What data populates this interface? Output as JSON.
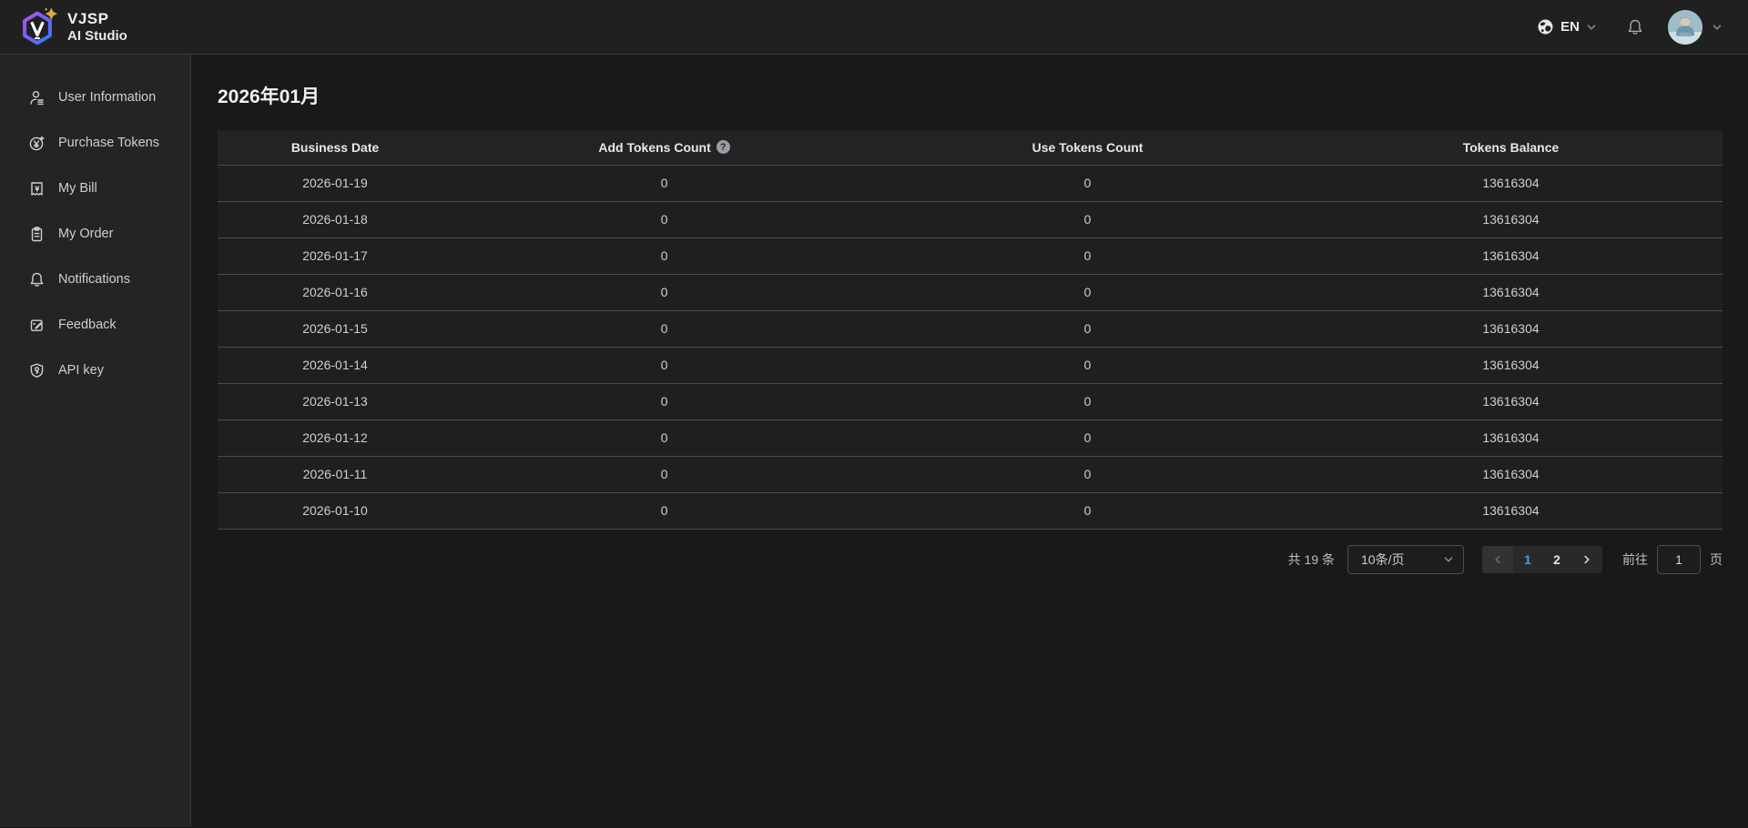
{
  "brand": {
    "name": "VJSP",
    "subtitle": "AI Studio"
  },
  "topbar": {
    "language": "EN"
  },
  "sidebar": {
    "items": [
      {
        "id": "user-information",
        "label": "User Information",
        "icon": "user-icon"
      },
      {
        "id": "purchase-tokens",
        "label": "Purchase Tokens",
        "icon": "yen-coin-icon"
      },
      {
        "id": "my-bill",
        "label": "My Bill",
        "icon": "bill-icon"
      },
      {
        "id": "my-order",
        "label": "My Order",
        "icon": "clipboard-icon"
      },
      {
        "id": "notifications",
        "label": "Notifications",
        "icon": "bell-icon"
      },
      {
        "id": "feedback",
        "label": "Feedback",
        "icon": "edit-note-icon"
      },
      {
        "id": "api-key",
        "label": "API key",
        "icon": "shield-key-icon"
      }
    ]
  },
  "main": {
    "title": "2026年01月",
    "table": {
      "columns": [
        "Business Date",
        "Add Tokens Count",
        "Use Tokens Count",
        "Tokens Balance"
      ],
      "help_icon_text": "?",
      "rows": [
        [
          "2026-01-19",
          "0",
          "0",
          "13616304"
        ],
        [
          "2026-01-18",
          "0",
          "0",
          "13616304"
        ],
        [
          "2026-01-17",
          "0",
          "0",
          "13616304"
        ],
        [
          "2026-01-16",
          "0",
          "0",
          "13616304"
        ],
        [
          "2026-01-15",
          "0",
          "0",
          "13616304"
        ],
        [
          "2026-01-14",
          "0",
          "0",
          "13616304"
        ],
        [
          "2026-01-13",
          "0",
          "0",
          "13616304"
        ],
        [
          "2026-01-12",
          "0",
          "0",
          "13616304"
        ],
        [
          "2026-01-11",
          "0",
          "0",
          "13616304"
        ],
        [
          "2026-01-10",
          "0",
          "0",
          "13616304"
        ]
      ]
    },
    "pagination": {
      "total_label": "共 19 条",
      "page_size_value": "10条/页",
      "pages": [
        "1",
        "2"
      ],
      "active_page": "1",
      "goto_label": "前往",
      "goto_value": "1",
      "page_unit_label": "页"
    }
  },
  "colors": {
    "accent_blue": "#409eff",
    "topbar_bg": "#202021",
    "sidebar_bg": "#242426",
    "main_bg": "#19191b",
    "table_bg": "#1f1f21",
    "logo_gradient_start": "#b44df0",
    "logo_gradient_end": "#2f7bf6",
    "logo_star_gold": "#dca83f"
  }
}
